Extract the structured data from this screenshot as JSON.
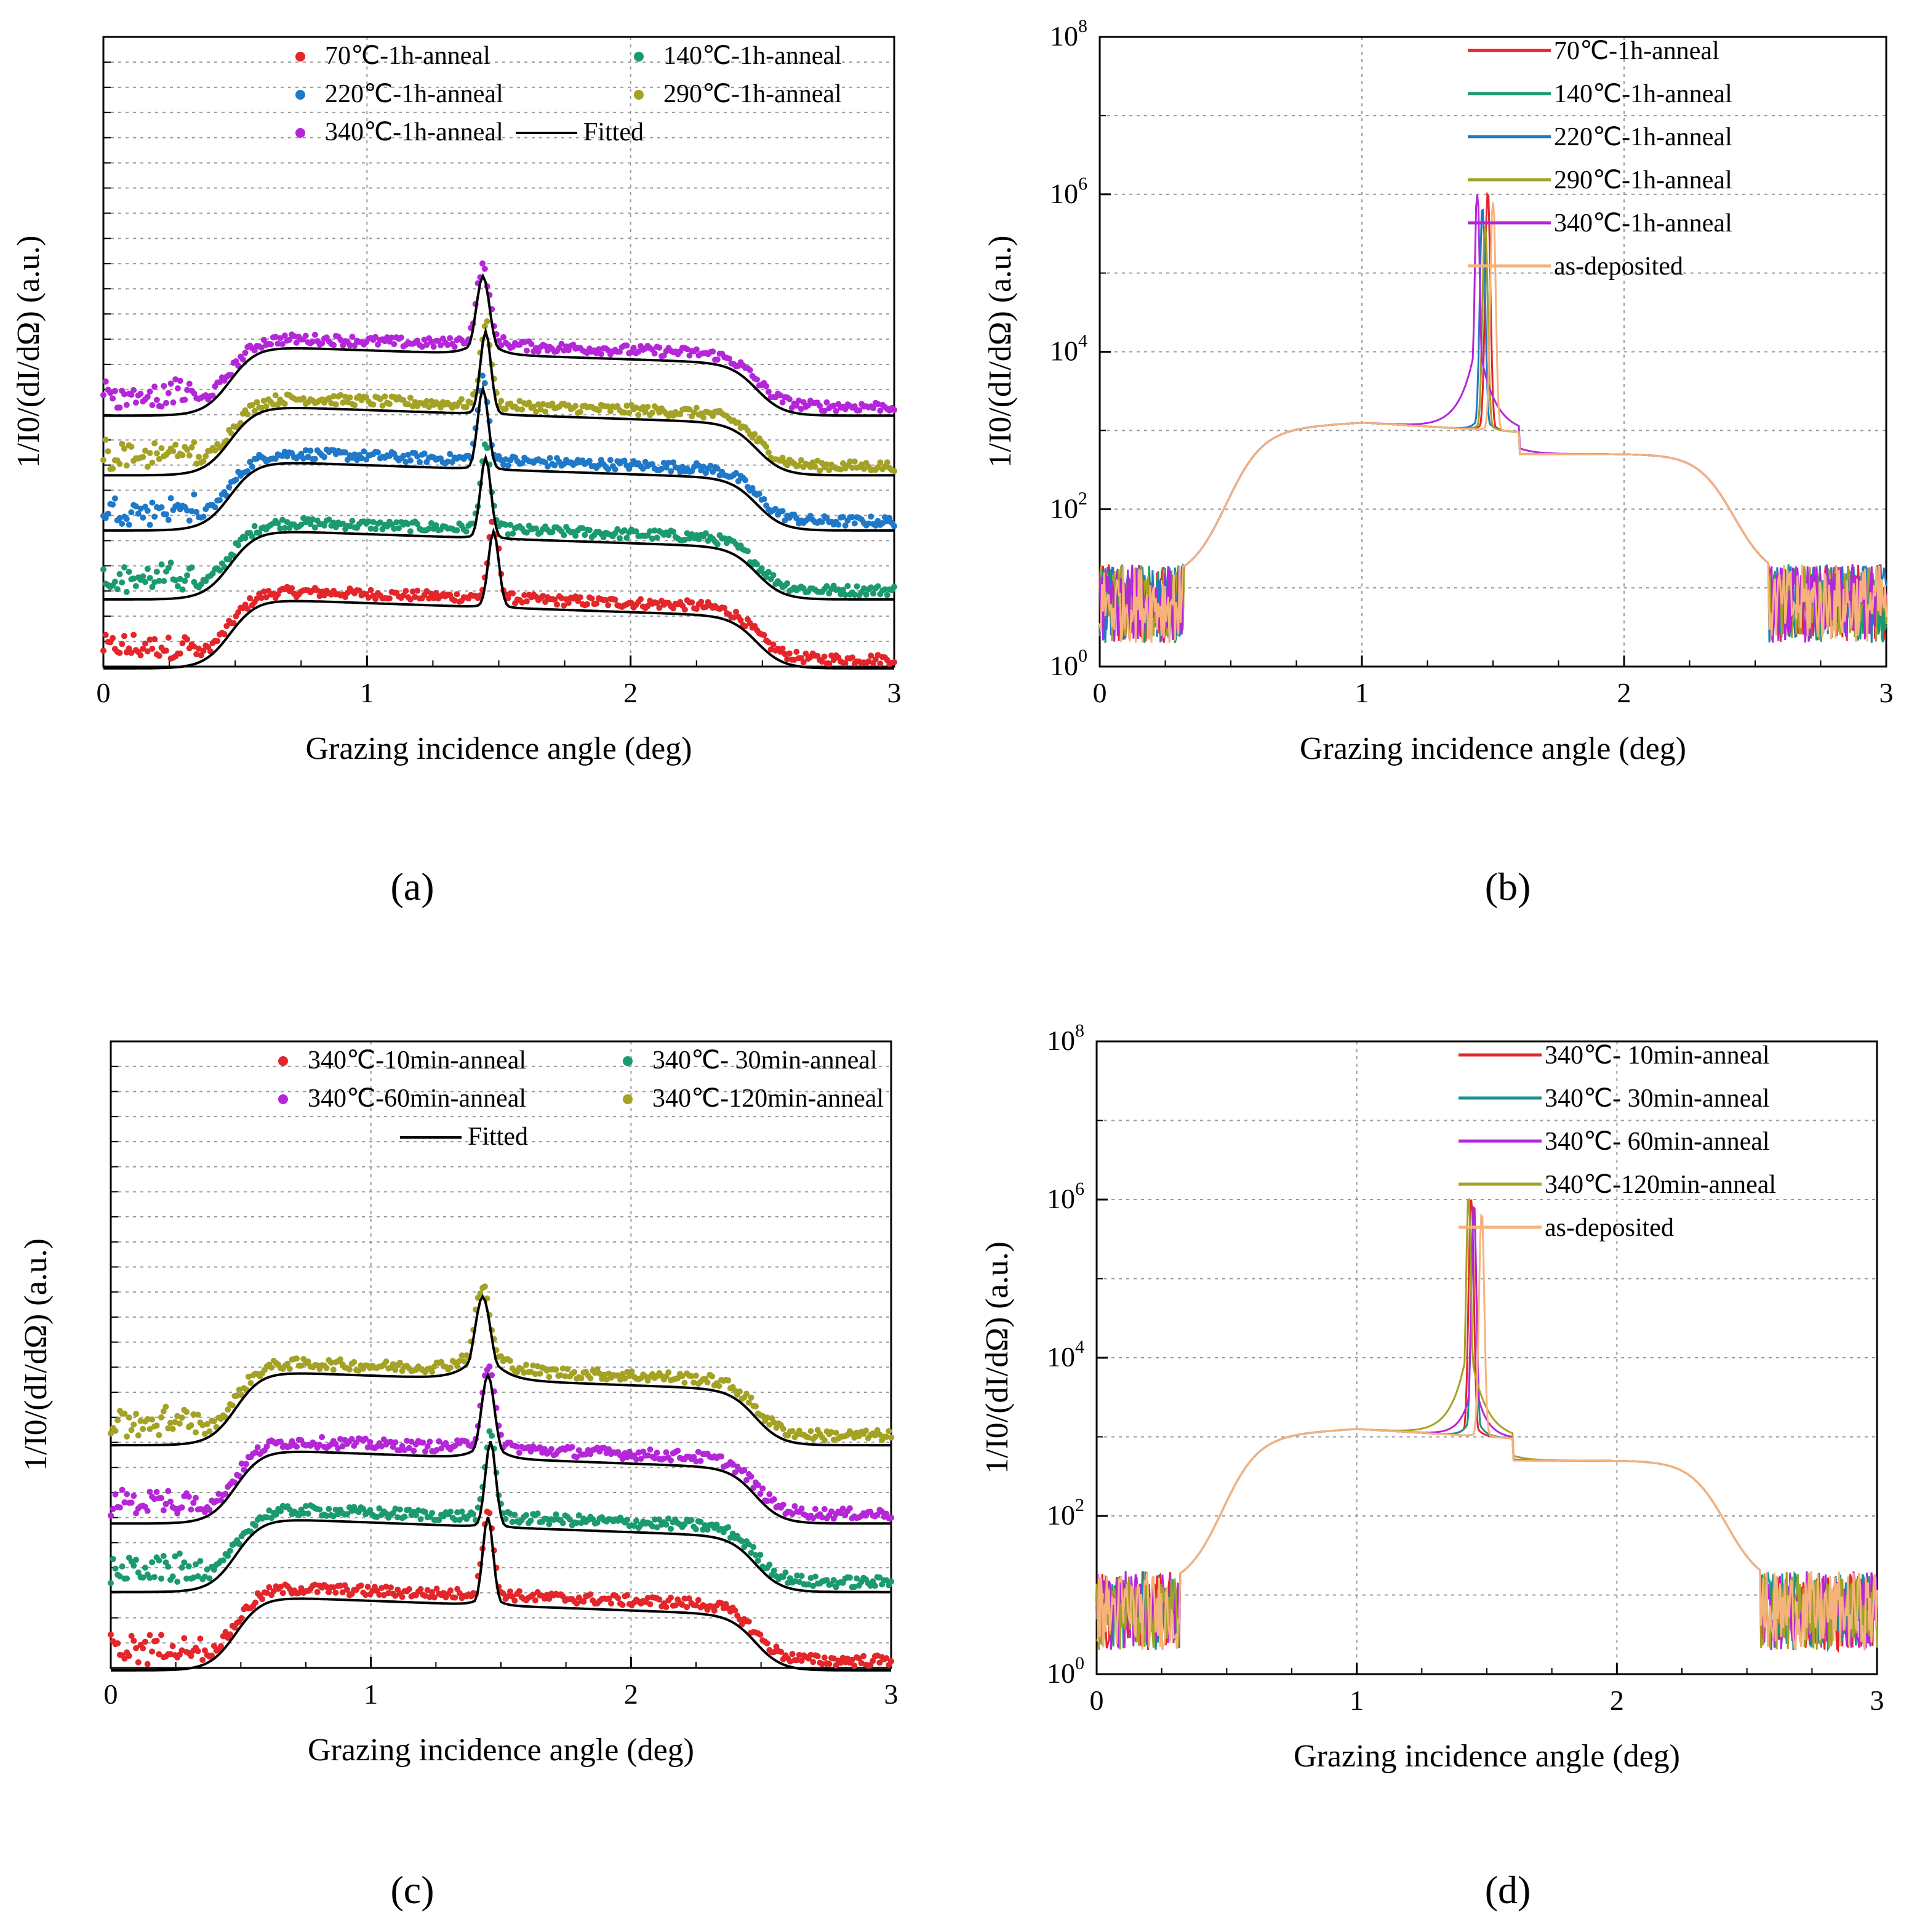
{
  "figure": {
    "panel_labels": [
      "(a)",
      "(b)",
      "(c)",
      "(d)"
    ],
    "colors": {
      "red": "#e3262a",
      "green": "#1a9a6e",
      "blue": "#1f78c8",
      "olive": "#a3a225",
      "violet": "#b526d9",
      "orange": "#f6b27b",
      "teal": "#18938e",
      "black": "#000000"
    }
  },
  "chart_data": [
    {
      "panel": "(a)",
      "type": "scatter",
      "xlabel": "Grazing incidence angle (deg)",
      "ylabel": "1/I0/(dI/dΩ) (a.u.)",
      "xlim": [
        0,
        3
      ],
      "xticks": [
        "0",
        "1",
        "2",
        "3"
      ],
      "y_scale": "stacked offset curves, no tick labels",
      "legend": [
        {
          "label": "70℃-1h-anneal",
          "kind": "marker",
          "color": "red"
        },
        {
          "label": "140℃-1h-anneal",
          "kind": "marker",
          "color": "green"
        },
        {
          "label": "220℃-1h-anneal",
          "kind": "marker",
          "color": "blue"
        },
        {
          "label": "290℃-1h-anneal",
          "kind": "marker",
          "color": "olive"
        },
        {
          "label": "340℃-1h-anneal",
          "kind": "marker",
          "color": "violet"
        },
        {
          "label": "Fitted",
          "kind": "line",
          "color": "black"
        }
      ],
      "series": [
        {
          "name": "70℃-1h-anneal",
          "color": "red",
          "offset": 0.0,
          "peak_x": 1.48,
          "peak_h": 3.3,
          "peak_w": 0.02,
          "wing": 0.2
        },
        {
          "name": "140℃-1h-anneal",
          "color": "green",
          "offset": 1.5,
          "peak_x": 1.45,
          "peak_h": 3.5,
          "peak_w": 0.02,
          "wing": 0.2
        },
        {
          "name": "220℃-1h-anneal",
          "color": "blue",
          "offset": 3.0,
          "peak_x": 1.44,
          "peak_h": 3.5,
          "peak_w": 0.02,
          "wing": 0.2
        },
        {
          "name": "290℃-1h-anneal",
          "color": "olive",
          "offset": 4.2,
          "peak_x": 1.45,
          "peak_h": 3.6,
          "peak_w": 0.02,
          "wing": 0.2
        },
        {
          "name": "340℃-1h-anneal",
          "color": "violet",
          "offset": 5.5,
          "peak_x": 1.44,
          "peak_h": 3.4,
          "peak_w": 0.025,
          "wing": 0.35
        }
      ]
    },
    {
      "panel": "(b)",
      "type": "line",
      "xlabel": "Grazing incidence angle (deg)",
      "ylabel": "1/I0/(dI/dΩ) (a.u.)",
      "xlim": [
        0,
        3
      ],
      "ylim_log10": [
        0,
        8
      ],
      "xticks": [
        "0",
        "1",
        "2",
        "3"
      ],
      "yticks": [
        {
          "base": "10",
          "exp": "0"
        },
        {
          "base": "10",
          "exp": "2"
        },
        {
          "base": "10",
          "exp": "4"
        },
        {
          "base": "10",
          "exp": "6"
        },
        {
          "base": "10",
          "exp": "8"
        }
      ],
      "legend": [
        {
          "label": "70℃-1h-anneal",
          "color": "red"
        },
        {
          "label": "140℃-1h-anneal",
          "color": "green"
        },
        {
          "label": "220℃-1h-anneal",
          "color": "blue"
        },
        {
          "label": "290℃-1h-anneal",
          "color": "olive"
        },
        {
          "label": "340℃-1h-anneal",
          "color": "violet"
        },
        {
          "label": "as-deposited",
          "color": "orange"
        }
      ],
      "series": [
        {
          "name": "70℃-1h-anneal",
          "color": "red",
          "peak_x": 1.48,
          "peak_log": 6.0,
          "wing": 0.15
        },
        {
          "name": "140℃-1h-anneal",
          "color": "green",
          "peak_x": 1.47,
          "peak_log": 5.5,
          "wing": 0.15
        },
        {
          "name": "220℃-1h-anneal",
          "color": "blue",
          "peak_x": 1.46,
          "peak_log": 5.8,
          "wing": 0.2
        },
        {
          "name": "290℃-1h-anneal",
          "color": "olive",
          "peak_x": 1.47,
          "peak_log": 5.6,
          "wing": 0.15
        },
        {
          "name": "340℃-1h-anneal",
          "color": "violet",
          "peak_x": 1.44,
          "peak_log": 6.0,
          "wing": 0.8
        },
        {
          "name": "as-deposited",
          "color": "orange",
          "peak_x": 1.5,
          "peak_log": 5.9,
          "wing": 0.1
        }
      ]
    },
    {
      "panel": "(c)",
      "type": "scatter",
      "xlabel": "Grazing incidence angle (deg)",
      "ylabel": "1/I0/(dI/dΩ) (a.u.)",
      "xlim": [
        0,
        3
      ],
      "xticks": [
        "0",
        "1",
        "2",
        "3"
      ],
      "y_scale": "stacked offset curves, no tick labels",
      "legend": [
        {
          "label": "340℃-10min-anneal",
          "kind": "marker",
          "color": "red"
        },
        {
          "label": "340℃-  30min-anneal",
          "kind": "marker",
          "color": "green"
        },
        {
          "label": "340℃-60min-anneal",
          "kind": "marker",
          "color": "violet"
        },
        {
          "label": "340℃-120min-anneal",
          "kind": "marker",
          "color": "olive"
        },
        {
          "label": "Fitted",
          "kind": "line",
          "color": "black"
        }
      ],
      "series": [
        {
          "name": "340℃-10min-anneal",
          "color": "red",
          "offset": 0.0,
          "peak_x": 1.45,
          "peak_h": 3.6,
          "peak_w": 0.02,
          "wing": 0.25
        },
        {
          "name": "340℃-  30min-anneal",
          "color": "green",
          "offset": 1.6,
          "peak_x": 1.46,
          "peak_h": 3.5,
          "peak_w": 0.02,
          "wing": 0.2
        },
        {
          "name": "340℃-60min-anneal",
          "color": "violet",
          "offset": 3.0,
          "peak_x": 1.45,
          "peak_h": 3.4,
          "peak_w": 0.025,
          "wing": 0.35
        },
        {
          "name": "340℃-120min-anneal",
          "color": "olive",
          "offset": 4.6,
          "peak_x": 1.43,
          "peak_h": 3.4,
          "peak_w": 0.03,
          "wing": 0.5
        }
      ]
    },
    {
      "panel": "(d)",
      "type": "line",
      "xlabel": "Grazing incidence angle (deg)",
      "ylabel": "1/I0/(dI/dΩ) (a.u.)",
      "xlim": [
        0,
        3
      ],
      "ylim_log10": [
        0,
        8
      ],
      "xticks": [
        "0",
        "1",
        "2",
        "3"
      ],
      "yticks": [
        {
          "base": "10",
          "exp": "0"
        },
        {
          "base": "10",
          "exp": "2"
        },
        {
          "base": "10",
          "exp": "4"
        },
        {
          "base": "10",
          "exp": "6"
        },
        {
          "base": "10",
          "exp": "8"
        }
      ],
      "legend": [
        {
          "label": "340℃-  10min-anneal",
          "color": "red"
        },
        {
          "label": "340℃-  30min-anneal",
          "color": "teal"
        },
        {
          "label": "340℃-  60min-anneal",
          "color": "violet"
        },
        {
          "label": "340℃-120min-anneal",
          "color": "olive"
        },
        {
          "label": "as-deposited",
          "color": "orange"
        }
      ],
      "series": [
        {
          "name": "340℃-  10min-anneal",
          "color": "red",
          "peak_x": 1.44,
          "peak_log": 6.0,
          "wing": 0.2
        },
        {
          "name": "340℃-  30min-anneal",
          "color": "teal",
          "peak_x": 1.45,
          "peak_log": 5.8,
          "wing": 0.25
        },
        {
          "name": "340℃-  60min-anneal",
          "color": "violet",
          "peak_x": 1.45,
          "peak_log": 5.9,
          "wing": 0.5
        },
        {
          "name": "340℃-120min-anneal",
          "color": "olive",
          "peak_x": 1.43,
          "peak_log": 6.0,
          "wing": 0.8
        },
        {
          "name": "as-deposited",
          "color": "orange",
          "peak_x": 1.48,
          "peak_log": 5.8,
          "wing": 0.1
        }
      ]
    }
  ]
}
